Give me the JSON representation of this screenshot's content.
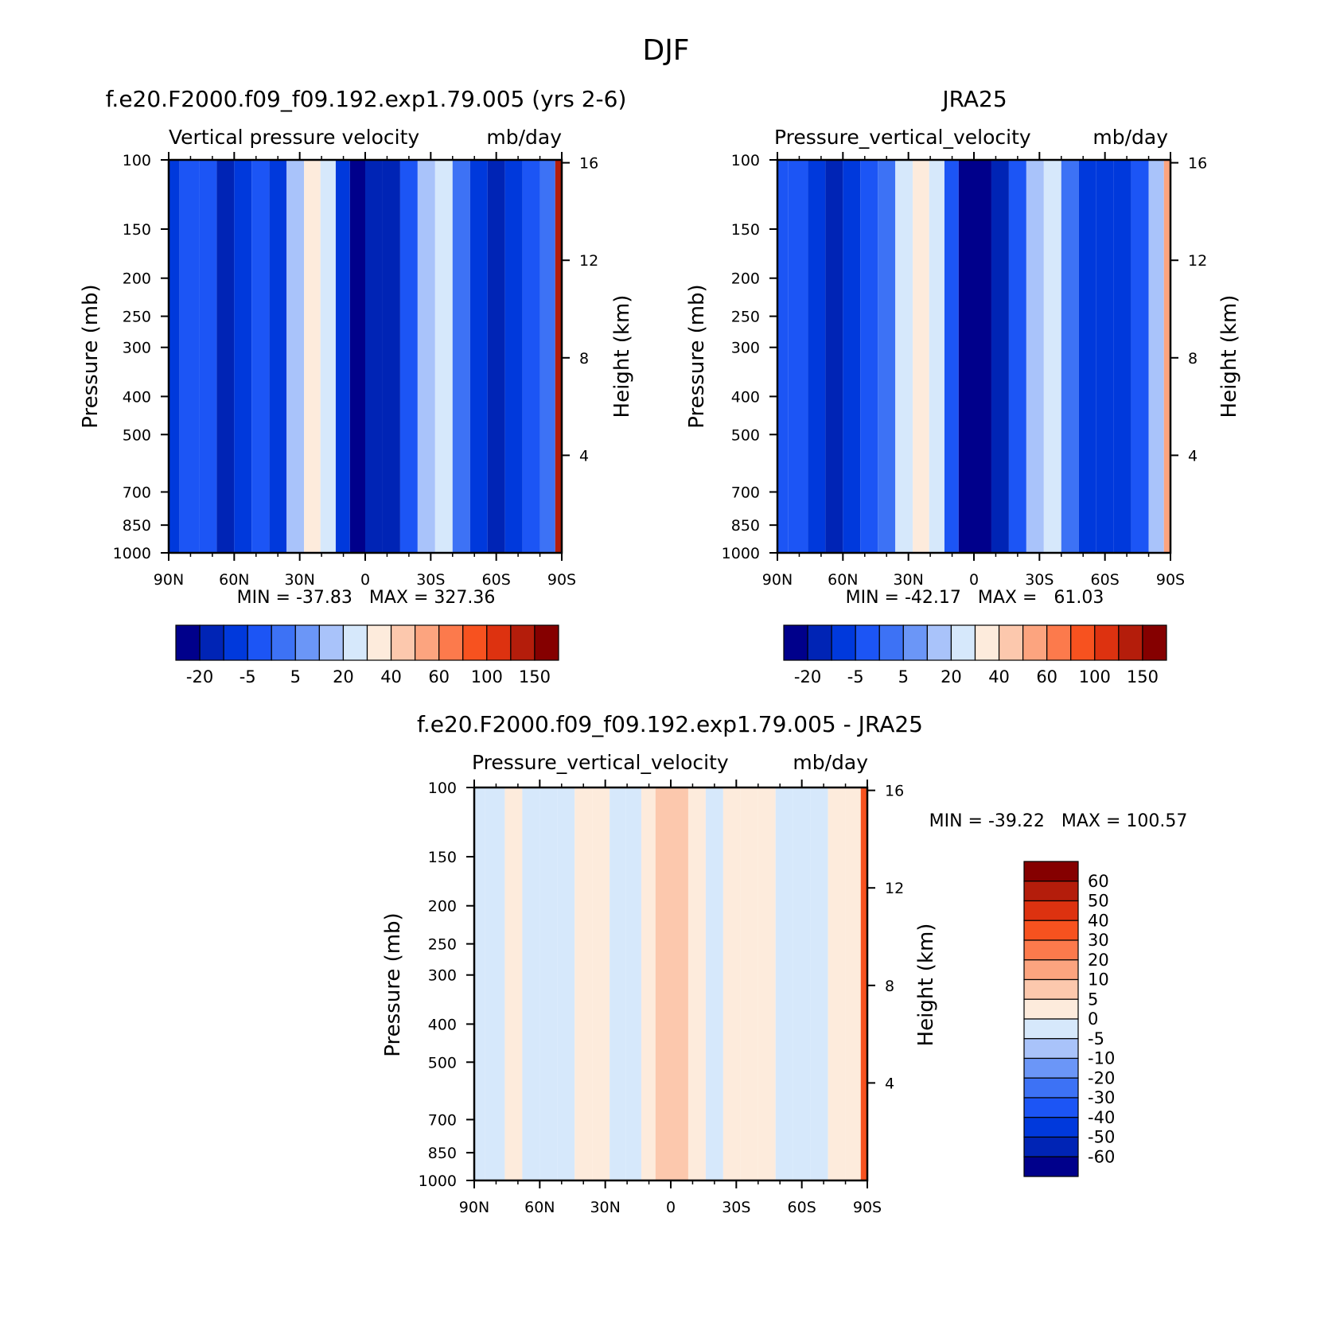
{
  "figure_title": "DJF",
  "colors": {
    "fg": "#000000",
    "abs_palette": [
      "#00008b",
      "#0024b5",
      "#0039dc",
      "#1c55f5",
      "#3d72f5",
      "#6b96f7",
      "#a9c3fa",
      "#d6e8fb",
      "#fdebdc",
      "#fcc8ad",
      "#fca47f",
      "#fc7a4c",
      "#f7521f",
      "#dd3210",
      "#b41d0b",
      "#850000"
    ],
    "diff_palette": [
      "#00008b",
      "#0024b5",
      "#0039dc",
      "#1c55f5",
      "#3d72f5",
      "#6b96f7",
      "#a9c3fa",
      "#d6e8fb",
      "#fdebdc",
      "#fcc8ad",
      "#fca47f",
      "#fc7a4c",
      "#f7521f",
      "#dd3210",
      "#b41d0b",
      "#850000"
    ]
  },
  "chart_data": [
    {
      "type": "heatmap",
      "panel": "model",
      "title": "f.e20.F2000.f09_f09.192.exp1.79.005 (yrs 2-6)",
      "subtitle_left": "Vertical pressure velocity",
      "subtitle_right": "mb/day",
      "ylabel": "Pressure (mb)",
      "ylabel_right": "Height (km)",
      "x_ticks": [
        "90N",
        "60N",
        "30N",
        "0",
        "30S",
        "60S",
        "90S"
      ],
      "x_range": [
        90,
        -90
      ],
      "y_ticks": [
        100,
        150,
        200,
        250,
        300,
        400,
        500,
        700,
        850,
        1000
      ],
      "y_range": [
        100,
        1000
      ],
      "height_ticks": [
        4,
        8,
        12,
        16
      ],
      "stats": "MIN = -37.83   MAX = 327.36",
      "colorbar_labels": [
        "-20",
        "-5",
        "5",
        "20",
        "40",
        "60",
        "100",
        "150"
      ],
      "columns": [
        {
          "lat": 90,
          "v": -12
        },
        {
          "lat": 80,
          "v": -10
        },
        {
          "lat": 72,
          "v": -8
        },
        {
          "lat": 64,
          "v": -25
        },
        {
          "lat": 56,
          "v": -15
        },
        {
          "lat": 48,
          "v": -10
        },
        {
          "lat": 40,
          "v": -12
        },
        {
          "lat": 32,
          "v": 5
        },
        {
          "lat": 24,
          "v": 20
        },
        {
          "lat": 17,
          "v": 15
        },
        {
          "lat": 10,
          "v": -15
        },
        {
          "lat": 4,
          "v": -35
        },
        {
          "lat": -4,
          "v": -30
        },
        {
          "lat": -12,
          "v": -25
        },
        {
          "lat": -20,
          "v": -10
        },
        {
          "lat": -28,
          "v": 5
        },
        {
          "lat": -36,
          "v": 10
        },
        {
          "lat": -44,
          "v": -5
        },
        {
          "lat": -52,
          "v": -15
        },
        {
          "lat": -60,
          "v": -25
        },
        {
          "lat": -68,
          "v": -20
        },
        {
          "lat": -76,
          "v": -10
        },
        {
          "lat": -84,
          "v": -5
        },
        {
          "lat": -90,
          "v": 100
        }
      ]
    },
    {
      "type": "heatmap",
      "panel": "obs",
      "title": "JRA25",
      "subtitle_left": "Pressure_vertical_velocity",
      "subtitle_right": "mb/day",
      "ylabel": "Pressure (mb)",
      "ylabel_right": "Height (km)",
      "x_ticks": [
        "90N",
        "60N",
        "30N",
        "0",
        "30S",
        "60S",
        "90S"
      ],
      "x_range": [
        90,
        -90
      ],
      "y_ticks": [
        100,
        150,
        200,
        250,
        300,
        400,
        500,
        700,
        850,
        1000
      ],
      "y_range": [
        100,
        1000
      ],
      "height_ticks": [
        4,
        8,
        12,
        16
      ],
      "stats": "MIN = -42.17   MAX =   61.03",
      "colorbar_labels": [
        "-20",
        "-5",
        "5",
        "20",
        "40",
        "60",
        "100",
        "150"
      ],
      "columns": [
        {
          "lat": 90,
          "v": -10
        },
        {
          "lat": 80,
          "v": -8
        },
        {
          "lat": 72,
          "v": -12
        },
        {
          "lat": 64,
          "v": -25
        },
        {
          "lat": 56,
          "v": -18
        },
        {
          "lat": 48,
          "v": -10
        },
        {
          "lat": 40,
          "v": -5
        },
        {
          "lat": 32,
          "v": 10
        },
        {
          "lat": 24,
          "v": 20
        },
        {
          "lat": 17,
          "v": 10
        },
        {
          "lat": 10,
          "v": -10
        },
        {
          "lat": 4,
          "v": -35
        },
        {
          "lat": -4,
          "v": -40
        },
        {
          "lat": -12,
          "v": -25
        },
        {
          "lat": -20,
          "v": -10
        },
        {
          "lat": -28,
          "v": 5
        },
        {
          "lat": -36,
          "v": 10
        },
        {
          "lat": -44,
          "v": -5
        },
        {
          "lat": -52,
          "v": -12
        },
        {
          "lat": -60,
          "v": -20
        },
        {
          "lat": -68,
          "v": -15
        },
        {
          "lat": -76,
          "v": -8
        },
        {
          "lat": -84,
          "v": 5
        },
        {
          "lat": -90,
          "v": 40
        }
      ]
    },
    {
      "type": "heatmap",
      "panel": "difference",
      "title": "f.e20.F2000.f09_f09.192.exp1.79.005 - JRA25",
      "subtitle_left": "Pressure_vertical_velocity",
      "subtitle_right": "mb/day",
      "ylabel": "Pressure (mb)",
      "ylabel_right": "Height (km)",
      "x_ticks": [
        "90N",
        "60N",
        "30N",
        "0",
        "30S",
        "60S",
        "90S"
      ],
      "x_range": [
        90,
        -90
      ],
      "y_ticks": [
        100,
        150,
        200,
        250,
        300,
        400,
        500,
        700,
        850,
        1000
      ],
      "y_range": [
        100,
        1000
      ],
      "height_ticks": [
        4,
        8,
        12,
        16
      ],
      "stats": "MIN = -39.22   MAX = 100.57",
      "colorbar_labels": [
        "60",
        "50",
        "40",
        "30",
        "20",
        "10",
        "5",
        "0",
        "-5",
        "-10",
        "-20",
        "-30",
        "-40",
        "-50",
        "-60"
      ],
      "columns": [
        {
          "lat": 90,
          "v": -2
        },
        {
          "lat": 80,
          "v": -3
        },
        {
          "lat": 72,
          "v": 2
        },
        {
          "lat": 64,
          "v": -2
        },
        {
          "lat": 56,
          "v": -3
        },
        {
          "lat": 48,
          "v": -2
        },
        {
          "lat": 40,
          "v": 2
        },
        {
          "lat": 32,
          "v": 3
        },
        {
          "lat": 24,
          "v": -2
        },
        {
          "lat": 17,
          "v": -5
        },
        {
          "lat": 10,
          "v": 3
        },
        {
          "lat": 4,
          "v": 8
        },
        {
          "lat": -4,
          "v": 5
        },
        {
          "lat": -12,
          "v": 3
        },
        {
          "lat": -20,
          "v": -3
        },
        {
          "lat": -28,
          "v": 2
        },
        {
          "lat": -36,
          "v": 3
        },
        {
          "lat": -44,
          "v": 2
        },
        {
          "lat": -52,
          "v": -2
        },
        {
          "lat": -60,
          "v": -2
        },
        {
          "lat": -68,
          "v": -3
        },
        {
          "lat": -76,
          "v": 2
        },
        {
          "lat": -84,
          "v": 3
        },
        {
          "lat": -90,
          "v": 30
        }
      ]
    }
  ]
}
